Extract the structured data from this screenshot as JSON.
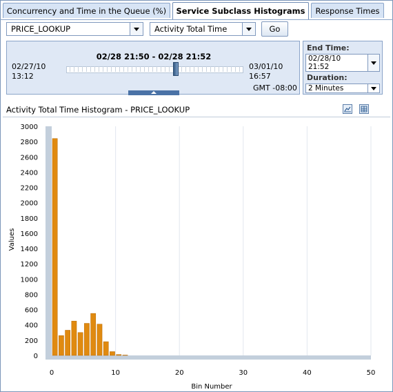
{
  "tabs": [
    {
      "label": "Concurrency and Time in the Queue (%)"
    },
    {
      "label": "Service Subclass Histograms"
    },
    {
      "label": "Response Times"
    }
  ],
  "toolbar": {
    "subclass_value": "PRICE_LOOKUP",
    "metric_value": "Activity Total Time",
    "go_label": "Go"
  },
  "range": {
    "title": "02/28 21:50 - 02/28 21:52",
    "start_date": "02/27/10",
    "start_time": "13:12",
    "end_date": "03/01/10",
    "end_time": "16:57",
    "timezone": "GMT -08:00"
  },
  "end_panel": {
    "end_time_label": "End Time:",
    "end_time_date": "02/28/10",
    "end_time_time": "21:52",
    "duration_label": "Duration:",
    "duration_value": "2 Minutes"
  },
  "histogram": {
    "title": "Activity Total Time Histogram - PRICE_LOOKUP",
    "icons": [
      "chart-icon",
      "table-icon"
    ]
  },
  "chart_data": {
    "type": "bar",
    "xlabel": "Bin Number",
    "ylabel": "Values",
    "xlim": [
      0,
      50
    ],
    "ylim": [
      0,
      3000
    ],
    "x_ticks": [
      0,
      10,
      20,
      30,
      40,
      50
    ],
    "y_ticks": [
      0,
      200,
      400,
      600,
      800,
      1000,
      1200,
      1400,
      1600,
      1800,
      2000,
      2200,
      2400,
      2600,
      2800,
      3000
    ],
    "x": [
      1,
      2,
      3,
      4,
      5,
      6,
      7,
      8,
      9,
      10,
      11,
      12
    ],
    "values": [
      2840,
      260,
      330,
      450,
      300,
      420,
      550,
      410,
      180,
      50,
      12,
      5
    ],
    "bar_color": "#e08a10",
    "plot_background": "#ffffff",
    "axis_floor_color": "#c3cfdc",
    "grid": true
  }
}
